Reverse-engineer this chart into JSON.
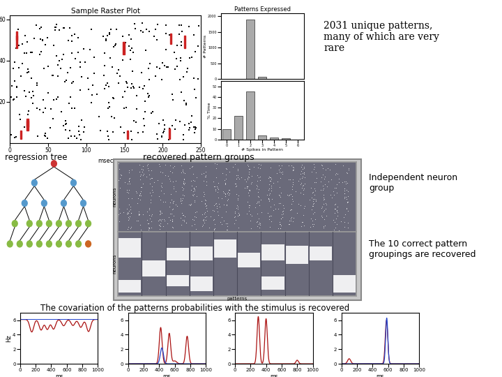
{
  "title_text": "2031 unique patterns,\nmany of which are very\nrare",
  "raster_title": "Sample Raster Plot",
  "patterns_title": "Patterns Expressed",
  "regression_label": "regression tree",
  "recovered_label": "recovered pattern groups",
  "independent_label": "Independent neuron\ngroup",
  "correct_label": "The 10 correct pattern\ngroupings are recovered",
  "covariation_label": "The covariation of the patterns probabilities with the stimulus is recovered",
  "bg_color": "#ffffff",
  "bar_color": "#aaaaaa",
  "dark_bg": "#6a6a7a",
  "bar1_vals": [
    0,
    0,
    1900,
    80,
    8,
    3,
    1
  ],
  "bar2_vals": [
    10,
    22,
    45,
    4,
    2,
    1,
    0
  ],
  "categories": [
    0,
    1,
    2,
    3,
    4,
    5,
    6
  ]
}
